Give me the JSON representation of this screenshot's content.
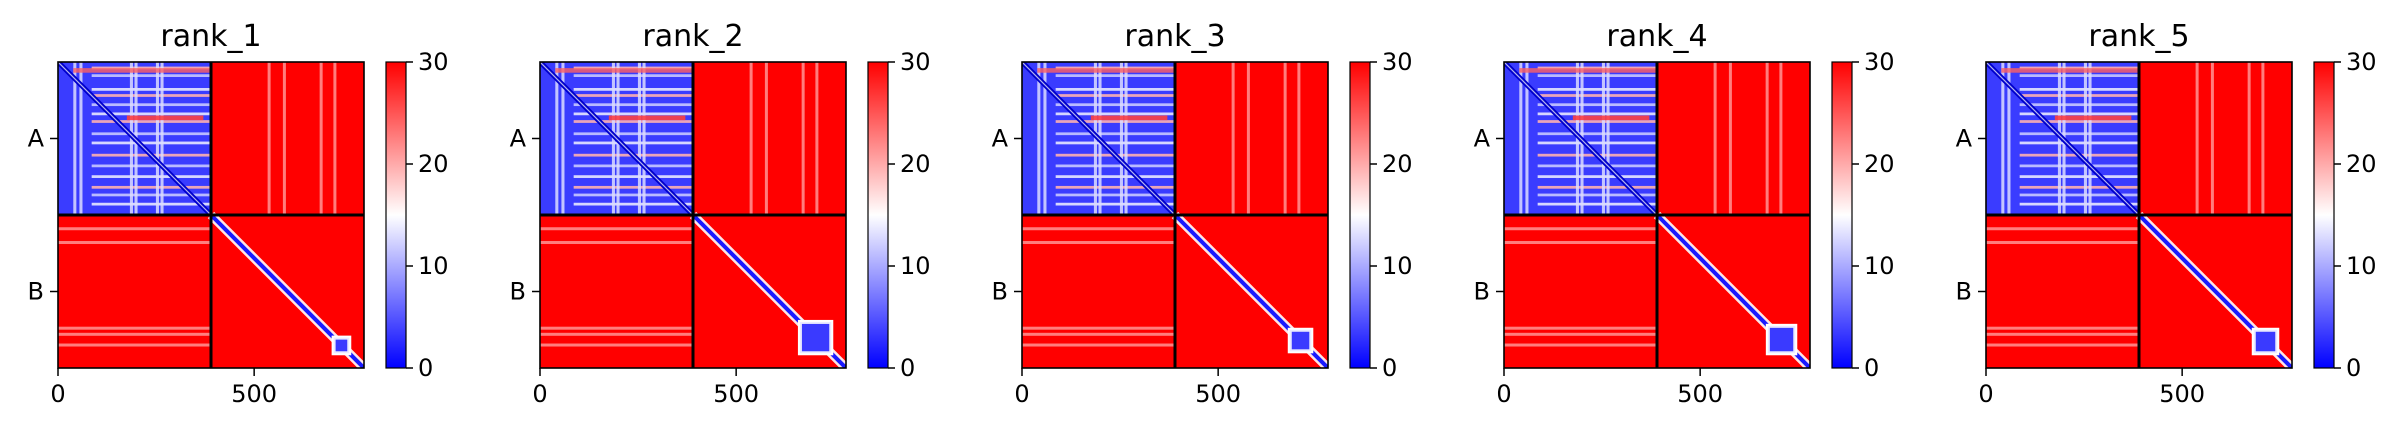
{
  "chart_data": {
    "type": "heatmap",
    "panels": [
      {
        "title": "rank_1",
        "chains": [
          "A",
          "B"
        ],
        "boundary": 390,
        "length": 780,
        "blue_blocks": [
          [
            0,
            390,
            0,
            390
          ],
          [
            90,
            390,
            0,
            390
          ]
        ],
        "domain2_blob": [
          700,
          745
        ]
      },
      {
        "title": "rank_2",
        "chains": [
          "A",
          "B"
        ],
        "boundary": 390,
        "length": 780,
        "blue_blocks": [
          [
            0,
            390,
            0,
            390
          ],
          [
            90,
            390,
            0,
            390
          ]
        ],
        "domain2_blob": [
          660,
          745
        ]
      },
      {
        "title": "rank_3",
        "chains": [
          "A",
          "B"
        ],
        "boundary": 390,
        "length": 780,
        "blue_blocks": [
          [
            0,
            390,
            0,
            390
          ],
          [
            90,
            390,
            0,
            390
          ]
        ],
        "domain2_blob": [
          680,
          740
        ]
      },
      {
        "title": "rank_4",
        "chains": [
          "A",
          "B"
        ],
        "boundary": 390,
        "length": 780,
        "blue_blocks": [
          [
            0,
            390,
            0,
            390
          ],
          [
            90,
            390,
            0,
            390
          ]
        ],
        "domain2_blob": [
          670,
          745
        ]
      },
      {
        "title": "rank_5",
        "chains": [
          "A",
          "B"
        ],
        "boundary": 390,
        "length": 780,
        "blue_blocks": [
          [
            0,
            390,
            0,
            390
          ],
          [
            90,
            390,
            0,
            390
          ]
        ],
        "domain2_blob": [
          680,
          745
        ]
      }
    ],
    "xlim": [
      0,
      780
    ],
    "xticks": [
      0,
      500
    ],
    "colorbar": {
      "range": [
        0,
        30
      ],
      "ticks": [
        0,
        10,
        20,
        30
      ],
      "colormap": "bwr",
      "colors": {
        "low": "#0000ff",
        "mid": "#ffffff",
        "high": "#ff0000"
      }
    },
    "grid": false,
    "legend": "none"
  }
}
